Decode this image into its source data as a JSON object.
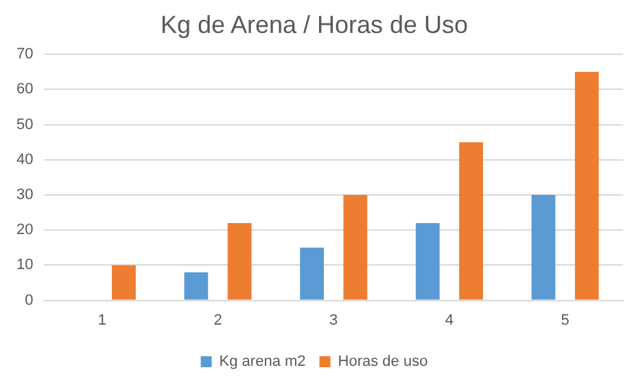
{
  "chart_data": {
    "type": "bar",
    "title": "Kg de Arena / Horas de Uso",
    "categories": [
      "1",
      "2",
      "3",
      "4",
      "5"
    ],
    "series": [
      {
        "name": "Kg arena m2",
        "color": "#5b9bd5",
        "values": [
          0,
          8,
          15,
          22,
          30
        ]
      },
      {
        "name": "Horas de uso",
        "color": "#ed7d31",
        "values": [
          10,
          22,
          30,
          45,
          65
        ]
      }
    ],
    "ylim": [
      0,
      70
    ],
    "yticks": [
      0,
      10,
      20,
      30,
      40,
      50,
      60,
      70
    ],
    "grid": "y",
    "legend": "bottom"
  }
}
